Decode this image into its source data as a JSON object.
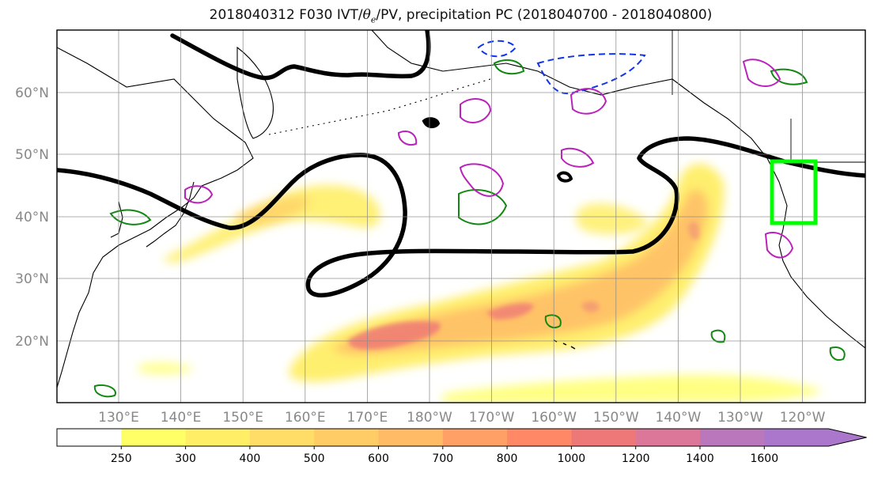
{
  "title": {
    "prefix": "2018040312 F030 IVT/",
    "theta_symbol": "θ",
    "theta_subscript": "e",
    "suffix": "/PV, precipitation PC (2018040700 - 2018040800)"
  },
  "map": {
    "lat_labels": [
      "20°N",
      "30°N",
      "40°N",
      "50°N",
      "60°N"
    ],
    "lon_labels": [
      "130°E",
      "140°E",
      "150°E",
      "160°E",
      "170°E",
      "180°W",
      "170°W",
      "160°W",
      "150°W",
      "140°W",
      "130°W",
      "120°W"
    ],
    "lat_range": [
      10,
      70
    ],
    "lon_range_east_deg": [
      120,
      250
    ],
    "grid": true,
    "layers": [
      "coastlines",
      "IVT filled contours",
      "theta-e contour (black)",
      "PV contours (green)",
      "PV contours (blue dashed)",
      "precipitation PC contours (magenta)",
      "target box (green)"
    ],
    "target_box_color": "#00ff00"
  },
  "colorbar": {
    "ticks": [
      "250",
      "300",
      "400",
      "500",
      "600",
      "700",
      "800",
      "1000",
      "1200",
      "1400",
      "1600"
    ],
    "colors": [
      "#ffff66",
      "#ffee66",
      "#ffdd66",
      "#ffcc66",
      "#ffbb66",
      "#ffa066",
      "#ff8866",
      "#ee7777",
      "#dd7799",
      "#bb77bb",
      "#aa77cc"
    ],
    "extend": "max"
  }
}
